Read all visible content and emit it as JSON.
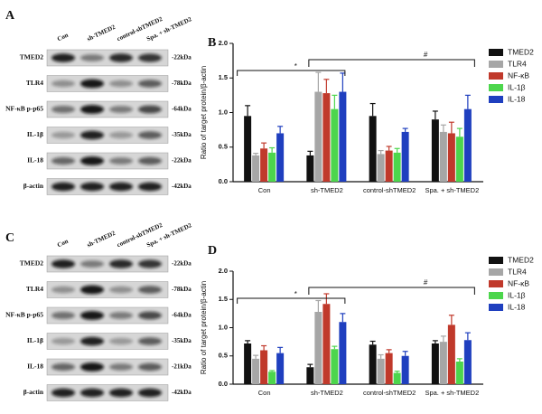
{
  "panels": [
    {
      "label": "A",
      "lanes": [
        "Con",
        "sh-TMED2",
        "control-shTMED2",
        "Spa. + sh-TMED2"
      ],
      "rows": [
        {
          "protein": "TMED2",
          "size": "-22kDa"
        },
        {
          "protein": "TLR4",
          "size": "-78kDa"
        },
        {
          "protein": "NF-κB p-p65",
          "size": "-64kDa"
        },
        {
          "protein": "IL-1β",
          "size": "-35kDa"
        },
        {
          "protein": "IL-18",
          "size": "-22kDa"
        },
        {
          "protein": "β-actin",
          "size": "-42kDa"
        }
      ]
    },
    {
      "label": "C",
      "lanes": [
        "Con",
        "sh-TMED2",
        "control-shTMED2",
        "Spa. + sh-TMED2"
      ],
      "rows": [
        {
          "protein": "TMED2",
          "size": "-22kDa"
        },
        {
          "protein": "TLR4",
          "size": "-78kDa"
        },
        {
          "protein": "NF-κB p-p65",
          "size": "-64kDa"
        },
        {
          "protein": "IL-1β",
          "size": "-35kDa"
        },
        {
          "protein": "IL-18",
          "size": "-21kDa"
        },
        {
          "protein": "β-actin",
          "size": "-42kDa"
        }
      ]
    }
  ],
  "chart_data": [
    {
      "type": "bar",
      "panel": "B",
      "y_label": "Ratio of target protein/β-actin",
      "categories": [
        "Con",
        "sh-TMED2",
        "control-shTMED2",
        "Spa. + sh-TMED2"
      ],
      "series": [
        {
          "name": "TMED2",
          "color": "#111111",
          "values": [
            0.95,
            0.38,
            0.95,
            0.9
          ],
          "errors": [
            0.15,
            0.06,
            0.18,
            0.12
          ]
        },
        {
          "name": "TLR4",
          "color": "#a6a6a6",
          "values": [
            0.38,
            1.3,
            0.4,
            0.72
          ],
          "errors": [
            0.03,
            0.28,
            0.05,
            0.1
          ]
        },
        {
          "name": "NF-κB",
          "color": "#c0392b",
          "values": [
            0.48,
            1.28,
            0.45,
            0.7
          ],
          "errors": [
            0.08,
            0.2,
            0.06,
            0.16
          ]
        },
        {
          "name": "IL-1β",
          "color": "#4cd64c",
          "values": [
            0.42,
            1.05,
            0.42,
            0.65
          ],
          "errors": [
            0.07,
            0.2,
            0.06,
            0.12
          ]
        },
        {
          "name": "IL-18",
          "color": "#1f3fbf",
          "values": [
            0.7,
            1.3,
            0.72,
            1.05
          ],
          "errors": [
            0.1,
            0.27,
            0.05,
            0.2
          ]
        }
      ],
      "ylim": [
        0,
        2
      ],
      "yticks": [
        {
          "value": 0,
          "label": "0.0"
        },
        {
          "value": 0.5,
          "label": "0.5"
        },
        {
          "value": 1,
          "label": "1.0"
        },
        {
          "value": 1.5,
          "label": "1.5"
        },
        {
          "value": 2,
          "label": "2.0"
        }
      ],
      "annotations": [
        "*",
        "#"
      ]
    },
    {
      "type": "bar",
      "panel": "D",
      "y_label": "Ratio of target protein/β-actin",
      "categories": [
        "Con",
        "sh-TMED2",
        "control-shTMED2",
        "Spa. + sh-TMED2"
      ],
      "series": [
        {
          "name": "TMED2",
          "color": "#111111",
          "values": [
            0.72,
            0.3,
            0.7,
            0.72
          ],
          "errors": [
            0.05,
            0.05,
            0.06,
            0.05
          ]
        },
        {
          "name": "TLR4",
          "color": "#a6a6a6",
          "values": [
            0.45,
            1.28,
            0.45,
            0.75
          ],
          "errors": [
            0.06,
            0.2,
            0.07,
            0.1
          ]
        },
        {
          "name": "NF-κB",
          "color": "#c0392b",
          "values": [
            0.6,
            1.42,
            0.55,
            1.05
          ],
          "errors": [
            0.08,
            0.18,
            0.06,
            0.17
          ]
        },
        {
          "name": "IL-1β",
          "color": "#4cd64c",
          "values": [
            0.22,
            0.62,
            0.2,
            0.4
          ],
          "errors": [
            0.02,
            0.05,
            0.03,
            0.05
          ]
        },
        {
          "name": "IL-18",
          "color": "#1f3fbf",
          "values": [
            0.55,
            1.1,
            0.5,
            0.78
          ],
          "errors": [
            0.1,
            0.15,
            0.08,
            0.13
          ]
        }
      ],
      "ylim": [
        0,
        2
      ],
      "yticks": [
        {
          "value": 0,
          "label": "0.0"
        },
        {
          "value": 0.5,
          "label": "0.5"
        },
        {
          "value": 1,
          "label": "1.0"
        },
        {
          "value": 1.5,
          "label": "1.5"
        },
        {
          "value": 2,
          "label": "2.0"
        }
      ],
      "annotations": [
        "*",
        "#"
      ]
    }
  ]
}
